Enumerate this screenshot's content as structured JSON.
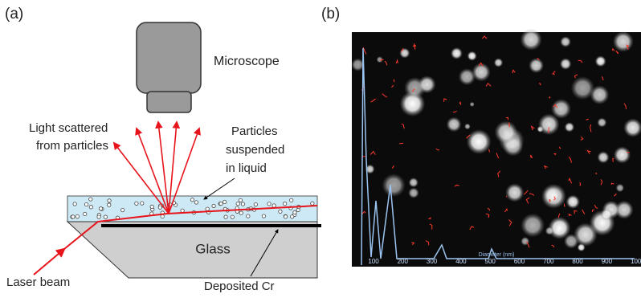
{
  "panels": {
    "a": {
      "label": "(a)",
      "microscope": "Microscope",
      "scattered": [
        "Light scattered",
        "from particles"
      ],
      "particles": [
        "Particles",
        "suspended",
        "in liquid"
      ],
      "glass": "Glass",
      "laser": "Laser beam",
      "cr": "Deposited Cr"
    },
    "b": {
      "label": "(b)",
      "axis_title": "Diameter (nm)",
      "ticks": [
        "100",
        "200",
        "300",
        "400",
        "500",
        "600",
        "700",
        "800",
        "900",
        "100"
      ]
    }
  }
}
